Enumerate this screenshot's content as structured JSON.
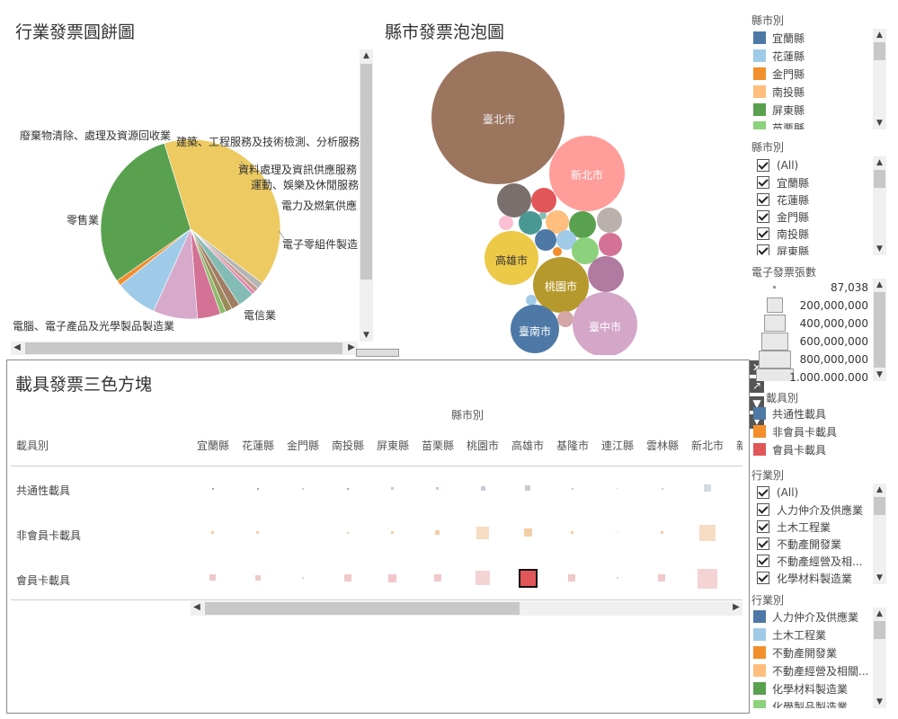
{
  "pie": {
    "title": "行業發票圓餅圖",
    "labels": {
      "waste": "廢棄物清除、處理及資源回收業",
      "construction": "建築、工程服務及技術檢測、分析服務",
      "data": "資料處理及資訊供應服務",
      "sports": "運動、娛樂及休閒服務",
      "power": "電力及燃氣供應",
      "parts": "電子零組件製造",
      "telecom": "電信業",
      "computer": "電腦、電子產品及光學製品製造業",
      "retail": "零售業"
    },
    "slices": [
      {
        "value": 40.0,
        "color": "#EDCB62"
      },
      {
        "value": 1.2,
        "color": "#B5B5B5"
      },
      {
        "value": 0.8,
        "color": "#C49A90"
      },
      {
        "value": 0.6,
        "color": "#E57EA8"
      },
      {
        "value": 3.0,
        "color": "#84BCB5"
      },
      {
        "value": 1.5,
        "color": "#A07D63"
      },
      {
        "value": 1.2,
        "color": "#9C8A5B"
      },
      {
        "value": 1.0,
        "color": "#8DBB6B"
      },
      {
        "value": 4.2,
        "color": "#D37295"
      },
      {
        "value": 8.0,
        "color": "#D7A9CB"
      },
      {
        "value": 7.5,
        "color": "#A0CBE8"
      },
      {
        "value": 1.0,
        "color": "#F28E2B"
      },
      {
        "value": 30.0,
        "color": "#59A14F"
      }
    ]
  },
  "bubble": {
    "title": "縣市發票泡泡圖",
    "labels": {
      "taipei": "臺北市",
      "newtaipei": "新北市",
      "kaohsiung": "高雄市",
      "taoyuan": "桃園市",
      "tainan": "臺南市",
      "taichung": "臺中市"
    }
  },
  "bottom": {
    "title": "載具發票三色方塊",
    "col_header": "縣市別",
    "row_header": "載具別",
    "columns": [
      "宜蘭縣",
      "花蓮縣",
      "金門縣",
      "南投縣",
      "屏東縣",
      "苗栗縣",
      "桃園市",
      "高雄市",
      "基隆市",
      "連江縣",
      "雲林縣",
      "新北市",
      "新竹"
    ],
    "rows": [
      "共通性載具",
      "非會員卡載具",
      "會員卡載具"
    ]
  },
  "right": {
    "county_legend_title": "縣市別",
    "county_legend": [
      {
        "label": "宜蘭縣",
        "color": "#4E79A7"
      },
      {
        "label": "花蓮縣",
        "color": "#A0CBE8"
      },
      {
        "label": "金門縣",
        "color": "#F28E2B"
      },
      {
        "label": "南投縣",
        "color": "#FFBE7D"
      },
      {
        "label": "屏東縣",
        "color": "#59A14F"
      },
      {
        "label": "苗栗縣",
        "color": "#8CD17D"
      }
    ],
    "county_filter_title": "縣市別",
    "county_filter": [
      "(All)",
      "宜蘭縣",
      "花蓮縣",
      "金門縣",
      "南投縣",
      "屏東縣"
    ],
    "size_title": "電子發票張數",
    "size_legend": [
      "87,038",
      "200,000,000",
      "400,000,000",
      "600,000,000",
      "800,000,000",
      "1,000,000,000"
    ],
    "carrier_title": "載具別",
    "carrier_legend": [
      {
        "label": "共通性載具",
        "color": "#4E79A7"
      },
      {
        "label": "非會員卡載具",
        "color": "#F28E2B"
      },
      {
        "label": "會員卡載具",
        "color": "#E15759"
      }
    ],
    "industry_filter_title": "行業別",
    "industry_filter": [
      "(All)",
      "人力仲介及供應業",
      "土木工程業",
      "不動產開發業",
      "不動產經營及相...",
      "化學材料製造業"
    ],
    "industry_legend_title": "行業別",
    "industry_legend": [
      {
        "label": "人力仲介及供應業",
        "color": "#4E79A7"
      },
      {
        "label": "土木工程業",
        "color": "#A0CBE8"
      },
      {
        "label": "不動產開發業",
        "color": "#F28E2B"
      },
      {
        "label": "不動產經營及相關...",
        "color": "#FFBE7D"
      },
      {
        "label": "化學材料製造業",
        "color": "#59A14F"
      },
      {
        "label": "化學製品製造業",
        "color": "#8CD17D"
      }
    ]
  }
}
